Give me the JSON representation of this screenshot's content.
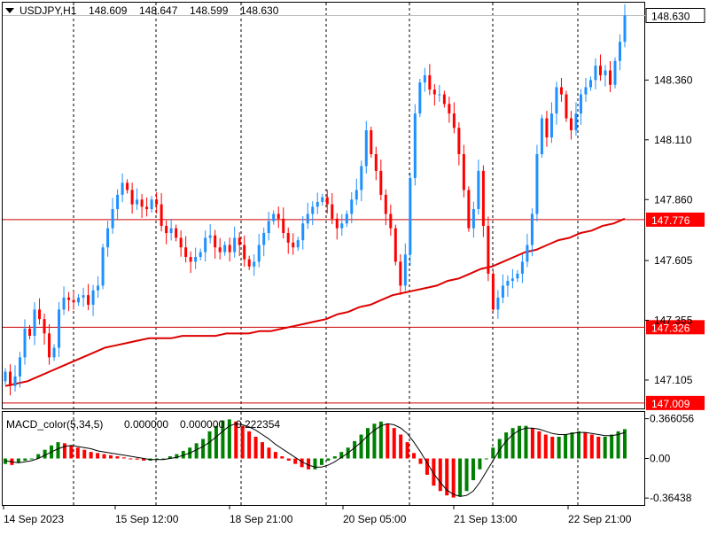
{
  "header": {
    "symbol": "USDJPY,H1",
    "open": "148.609",
    "high": "148.647",
    "low": "148.599",
    "close": "148.630"
  },
  "macd_header": {
    "name": "MACD_color(5,34,5)",
    "v1": "0.000000",
    "v2": "0.000000",
    "v3": "0.222354"
  },
  "colors": {
    "bull": "#1e90ff",
    "bear": "#ff0000",
    "ma": "#dd0000",
    "hline": "#cc0000",
    "hist_up": "#008000",
    "hist_down": "#ff0000",
    "signal": "#000000",
    "price_tag_bg": "#ff0000",
    "bid_tag_bg": "#ffffff"
  },
  "chart_data": [
    {
      "type": "candlestick",
      "symbol": "USDJPY",
      "timeframe": "H1",
      "price_scale": {
        "ticks": [
          "148.360",
          "148.110",
          "147.860",
          "147.605",
          "147.355",
          "147.105"
        ],
        "range": [
          146.99,
          148.68
        ]
      },
      "time_labels": [
        "14 Sep 2023",
        "15 Sep 12:00",
        "18 Sep 21:00",
        "20 Sep 05:00",
        "21 Sep 13:00",
        "22 Sep 21:00"
      ],
      "current_price": "148.630",
      "horizontal_levels": [
        "147.776",
        "147.326",
        "147.009"
      ],
      "closes": [
        147.14,
        147.08,
        147.12,
        147.2,
        147.32,
        147.29,
        147.4,
        147.36,
        147.3,
        147.2,
        147.24,
        147.4,
        147.45,
        147.44,
        147.43,
        147.45,
        147.46,
        147.42,
        147.48,
        147.5,
        147.66,
        147.74,
        147.82,
        147.88,
        147.93,
        147.9,
        147.84,
        147.86,
        147.83,
        147.82,
        147.86,
        147.84,
        147.75,
        147.72,
        147.74,
        147.7,
        147.66,
        147.62,
        147.6,
        147.62,
        147.64,
        147.7,
        147.71,
        147.66,
        147.64,
        147.67,
        147.64,
        147.7,
        147.67,
        147.61,
        147.58,
        147.6,
        147.67,
        147.72,
        147.77,
        147.8,
        147.78,
        147.72,
        147.68,
        147.66,
        147.69,
        147.76,
        147.8,
        147.83,
        147.85,
        147.87,
        147.84,
        147.78,
        147.74,
        147.76,
        147.8,
        147.86,
        147.9,
        148.0,
        148.15,
        148.05,
        147.98,
        147.88,
        147.8,
        147.74,
        147.6,
        147.5,
        147.63,
        147.95,
        148.22,
        148.35,
        148.38,
        148.32,
        148.3,
        148.3,
        148.26,
        148.22,
        148.16,
        148.05,
        147.9,
        147.74,
        147.82,
        147.98,
        147.75,
        147.55,
        147.4,
        147.45,
        147.5,
        147.52,
        147.53,
        147.55,
        147.6,
        147.67,
        147.8,
        148.05,
        148.2,
        148.12,
        148.22,
        148.33,
        148.3,
        148.2,
        148.15,
        148.22,
        148.3,
        148.33,
        148.36,
        148.42,
        148.38,
        148.4,
        148.34,
        148.44,
        148.52,
        148.63
      ],
      "ma": [
        147.08,
        147.09,
        147.1,
        147.12,
        147.14,
        147.16,
        147.18,
        147.2,
        147.22,
        147.24,
        147.25,
        147.26,
        147.27,
        147.28,
        147.28,
        147.28,
        147.29,
        147.29,
        147.29,
        147.29,
        147.3,
        147.3,
        147.3,
        147.31,
        147.31,
        147.32,
        147.33,
        147.34,
        147.35,
        147.36,
        147.38,
        147.39,
        147.41,
        147.42,
        147.44,
        147.46,
        147.47,
        147.48,
        147.49,
        147.5,
        147.52,
        147.53,
        147.55,
        147.57,
        147.58,
        147.6,
        147.62,
        147.64,
        147.65,
        147.67,
        147.69,
        147.7,
        147.72,
        147.73,
        147.75,
        147.76,
        147.78
      ],
      "macd_scale": {
        "ticks": [
          "0.366056",
          "0.00",
          "-0.36438"
        ],
        "range": [
          -0.42,
          0.42
        ]
      },
      "macd_hist": [
        -0.05,
        -0.06,
        -0.04,
        -0.02,
        0.0,
        0.04,
        0.08,
        0.12,
        0.15,
        0.14,
        0.12,
        0.1,
        0.08,
        0.06,
        0.05,
        0.04,
        0.03,
        0.02,
        0.01,
        0.0,
        -0.01,
        -0.02,
        -0.02,
        -0.01,
        0.0,
        0.02,
        0.04,
        0.07,
        0.1,
        0.14,
        0.18,
        0.25,
        0.3,
        0.35,
        0.36,
        0.34,
        0.3,
        0.25,
        0.2,
        0.15,
        0.1,
        0.06,
        0.02,
        -0.02,
        -0.05,
        -0.08,
        -0.1,
        -0.1,
        -0.06,
        -0.02,
        0.02,
        0.06,
        0.1,
        0.16,
        0.22,
        0.28,
        0.32,
        0.34,
        0.32,
        0.28,
        0.22,
        0.15,
        0.05,
        -0.05,
        -0.15,
        -0.25,
        -0.3,
        -0.34,
        -0.36,
        -0.35,
        -0.3,
        -0.2,
        -0.1,
        0.0,
        0.1,
        0.18,
        0.24,
        0.28,
        0.3,
        0.3,
        0.28,
        0.25,
        0.22,
        0.2,
        0.2,
        0.22,
        0.24,
        0.25,
        0.24,
        0.22,
        0.2,
        0.2,
        0.22,
        0.25,
        0.27
      ],
      "macd_signal": [
        -0.02,
        -0.03,
        -0.04,
        -0.03,
        -0.02,
        0.0,
        0.03,
        0.06,
        0.09,
        0.11,
        0.12,
        0.11,
        0.1,
        0.09,
        0.07,
        0.06,
        0.05,
        0.04,
        0.03,
        0.02,
        0.01,
        0.0,
        -0.01,
        -0.01,
        -0.01,
        0.0,
        0.01,
        0.03,
        0.05,
        0.08,
        0.11,
        0.15,
        0.2,
        0.25,
        0.3,
        0.32,
        0.31,
        0.29,
        0.26,
        0.22,
        0.18,
        0.13,
        0.09,
        0.05,
        0.01,
        -0.03,
        -0.06,
        -0.08,
        -0.08,
        -0.06,
        -0.03,
        0.01,
        0.05,
        0.1,
        0.15,
        0.21,
        0.26,
        0.3,
        0.32,
        0.31,
        0.28,
        0.23,
        0.15,
        0.06,
        -0.04,
        -0.14,
        -0.22,
        -0.29,
        -0.33,
        -0.35,
        -0.34,
        -0.3,
        -0.22,
        -0.12,
        -0.02,
        0.08,
        0.16,
        0.22,
        0.26,
        0.28,
        0.28,
        0.27,
        0.25,
        0.23,
        0.22,
        0.22,
        0.23,
        0.24,
        0.24,
        0.23,
        0.22,
        0.21,
        0.21,
        0.22,
        0.24
      ]
    }
  ]
}
